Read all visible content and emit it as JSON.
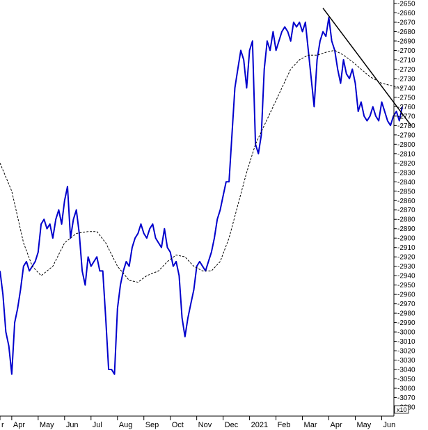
{
  "chart_data": {
    "type": "line",
    "title": "",
    "xlabel": "",
    "ylabel": "",
    "y_axis_position": "right",
    "y_axis_inverted": true,
    "ylim": [
      -3080,
      -2650
    ],
    "y_tick_step": 10,
    "axis_unit_label": "x10",
    "x_tick_labels": [
      {
        "label": "r",
        "t": 0
      },
      {
        "label": "Apr",
        "t": 4
      },
      {
        "label": "May",
        "t": 13
      },
      {
        "label": "Jun",
        "t": 22
      },
      {
        "label": "Jul",
        "t": 31
      },
      {
        "label": "Aug",
        "t": 40
      },
      {
        "label": "Sep",
        "t": 49
      },
      {
        "label": "Oct",
        "t": 58
      },
      {
        "label": "Nov",
        "t": 67
      },
      {
        "label": "Dec",
        "t": 76
      },
      {
        "label": "2021",
        "t": 85
      },
      {
        "label": "Feb",
        "t": 94
      },
      {
        "label": "Mar",
        "t": 103
      },
      {
        "label": "Apr",
        "t": 112
      },
      {
        "label": "May",
        "t": 121
      },
      {
        "label": "Jun",
        "t": 130
      }
    ],
    "x_range": [
      0,
      137
    ],
    "series": [
      {
        "color": "#0000cc",
        "style": "solid",
        "points": [
          [
            0,
            -2935
          ],
          [
            1,
            -2960
          ],
          [
            2,
            -3000
          ],
          [
            3,
            -3015
          ],
          [
            4,
            -3045
          ],
          [
            5,
            -2990
          ],
          [
            6,
            -2975
          ],
          [
            7,
            -2955
          ],
          [
            8,
            -2930
          ],
          [
            9,
            -2925
          ],
          [
            10,
            -2935
          ],
          [
            11,
            -2930
          ],
          [
            12,
            -2925
          ],
          [
            13,
            -2915
          ],
          [
            14,
            -2885
          ],
          [
            15,
            -2880
          ],
          [
            16,
            -2890
          ],
          [
            17,
            -2885
          ],
          [
            18,
            -2900
          ],
          [
            19,
            -2880
          ],
          [
            20,
            -2870
          ],
          [
            21,
            -2885
          ],
          [
            22,
            -2860
          ],
          [
            23,
            -2845
          ],
          [
            24,
            -2900
          ],
          [
            25,
            -2880
          ],
          [
            26,
            -2870
          ],
          [
            27,
            -2895
          ],
          [
            28,
            -2935
          ],
          [
            29,
            -2950
          ],
          [
            30,
            -2920
          ],
          [
            31,
            -2930
          ],
          [
            32,
            -2925
          ],
          [
            33,
            -2920
          ],
          [
            34,
            -2935
          ],
          [
            35,
            -2935
          ],
          [
            36,
            -2985
          ],
          [
            37,
            -3040
          ],
          [
            38,
            -3040
          ],
          [
            39,
            -3045
          ],
          [
            40,
            -2975
          ],
          [
            41,
            -2950
          ],
          [
            42,
            -2935
          ],
          [
            43,
            -2925
          ],
          [
            44,
            -2930
          ],
          [
            45,
            -2910
          ],
          [
            46,
            -2900
          ],
          [
            47,
            -2895
          ],
          [
            48,
            -2885
          ],
          [
            49,
            -2895
          ],
          [
            50,
            -2900
          ],
          [
            51,
            -2890
          ],
          [
            52,
            -2885
          ],
          [
            53,
            -2900
          ],
          [
            54,
            -2905
          ],
          [
            55,
            -2910
          ],
          [
            56,
            -2890
          ],
          [
            57,
            -2910
          ],
          [
            58,
            -2915
          ],
          [
            59,
            -2930
          ],
          [
            60,
            -2925
          ],
          [
            61,
            -2940
          ],
          [
            62,
            -2985
          ],
          [
            63,
            -3005
          ],
          [
            64,
            -2985
          ],
          [
            65,
            -2970
          ],
          [
            66,
            -2955
          ],
          [
            67,
            -2930
          ],
          [
            68,
            -2925
          ],
          [
            69,
            -2930
          ],
          [
            70,
            -2935
          ],
          [
            71,
            -2925
          ],
          [
            72,
            -2915
          ],
          [
            73,
            -2900
          ],
          [
            74,
            -2880
          ],
          [
            75,
            -2870
          ],
          [
            76,
            -2855
          ],
          [
            77,
            -2840
          ],
          [
            78,
            -2840
          ],
          [
            79,
            -2790
          ],
          [
            80,
            -2740
          ],
          [
            81,
            -2720
          ],
          [
            82,
            -2700
          ],
          [
            83,
            -2710
          ],
          [
            84,
            -2740
          ],
          [
            85,
            -2700
          ],
          [
            86,
            -2690
          ],
          [
            87,
            -2800
          ],
          [
            88,
            -2810
          ],
          [
            89,
            -2790
          ],
          [
            90,
            -2720
          ],
          [
            91,
            -2690
          ],
          [
            92,
            -2700
          ],
          [
            93,
            -2680
          ],
          [
            94,
            -2700
          ],
          [
            95,
            -2690
          ],
          [
            96,
            -2680
          ],
          [
            97,
            -2675
          ],
          [
            98,
            -2680
          ],
          [
            99,
            -2690
          ],
          [
            100,
            -2670
          ],
          [
            101,
            -2675
          ],
          [
            102,
            -2670
          ],
          [
            103,
            -2680
          ],
          [
            104,
            -2670
          ],
          [
            105,
            -2700
          ],
          [
            106,
            -2730
          ],
          [
            107,
            -2760
          ],
          [
            108,
            -2710
          ],
          [
            109,
            -2690
          ],
          [
            110,
            -2680
          ],
          [
            111,
            -2685
          ],
          [
            112,
            -2665
          ],
          [
            113,
            -2690
          ],
          [
            114,
            -2700
          ],
          [
            115,
            -2720
          ],
          [
            116,
            -2735
          ],
          [
            117,
            -2710
          ],
          [
            118,
            -2725
          ],
          [
            119,
            -2730
          ],
          [
            120,
            -2720
          ],
          [
            121,
            -2735
          ],
          [
            122,
            -2765
          ],
          [
            123,
            -2755
          ],
          [
            124,
            -2770
          ],
          [
            125,
            -2775
          ],
          [
            126,
            -2770
          ],
          [
            127,
            -2760
          ],
          [
            128,
            -2770
          ],
          [
            129,
            -2775
          ],
          [
            130,
            -2755
          ],
          [
            131,
            -2765
          ],
          [
            132,
            -2775
          ],
          [
            133,
            -2780
          ],
          [
            134,
            -2770
          ],
          [
            135,
            -2765
          ],
          [
            136,
            -2775
          ],
          [
            137,
            -2760
          ]
        ]
      },
      {
        "color": "#000000",
        "style": "dashed",
        "points": [
          [
            0,
            -2820
          ],
          [
            4,
            -2850
          ],
          [
            8,
            -2905
          ],
          [
            11,
            -2930
          ],
          [
            14,
            -2940
          ],
          [
            18,
            -2930
          ],
          [
            22,
            -2905
          ],
          [
            26,
            -2895
          ],
          [
            30,
            -2893
          ],
          [
            33,
            -2893
          ],
          [
            36,
            -2905
          ],
          [
            40,
            -2930
          ],
          [
            44,
            -2945
          ],
          [
            47,
            -2947
          ],
          [
            50,
            -2940
          ],
          [
            54,
            -2935
          ],
          [
            57,
            -2925
          ],
          [
            60,
            -2918
          ],
          [
            63,
            -2920
          ],
          [
            66,
            -2930
          ],
          [
            69,
            -2935
          ],
          [
            72,
            -2935
          ],
          [
            75,
            -2925
          ],
          [
            78,
            -2900
          ],
          [
            81,
            -2865
          ],
          [
            84,
            -2830
          ],
          [
            87,
            -2800
          ],
          [
            90,
            -2780
          ],
          [
            93,
            -2760
          ],
          [
            96,
            -2740
          ],
          [
            99,
            -2720
          ],
          [
            102,
            -2710
          ],
          [
            105,
            -2705
          ],
          [
            108,
            -2705
          ],
          [
            111,
            -2702
          ],
          [
            114,
            -2700
          ],
          [
            117,
            -2705
          ],
          [
            120,
            -2712
          ],
          [
            123,
            -2720
          ],
          [
            126,
            -2728
          ],
          [
            130,
            -2735
          ],
          [
            134,
            -2738
          ],
          [
            137,
            -2740
          ]
        ]
      },
      {
        "color": "#000000",
        "style": "solid",
        "points": [
          [
            110,
            -2655
          ],
          [
            140,
            -2780
          ]
        ]
      }
    ]
  }
}
